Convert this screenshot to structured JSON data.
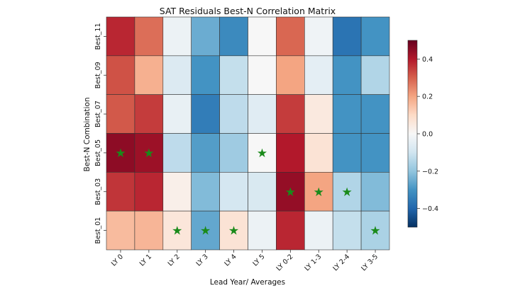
{
  "chart_data": {
    "type": "heatmap",
    "title": "SAT Residuals Best-N Correlation Matrix",
    "xlabel": "Lead Year/ Averages",
    "ylabel": "Best-N Combination",
    "x_categories": [
      "LY 0",
      "LY 1",
      "LY 2",
      "LY 3",
      "LY 4",
      "LY 5",
      "LY 0-2",
      "LY 1-3",
      "LY 2-4",
      "LY 3-5"
    ],
    "y_categories": [
      "Best_11",
      "Best_09",
      "Best_07",
      "Best_05",
      "Best_03",
      "Best_01"
    ],
    "values": [
      [
        0.38,
        0.28,
        -0.03,
        -0.25,
        -0.32,
        0.0,
        0.29,
        -0.02,
        -0.37,
        -0.3
      ],
      [
        0.32,
        0.18,
        -0.07,
        -0.3,
        -0.12,
        0.0,
        0.2,
        -0.05,
        -0.3,
        -0.15
      ],
      [
        0.31,
        0.35,
        -0.04,
        -0.35,
        -0.13,
        -0.06,
        0.35,
        0.05,
        -0.3,
        -0.3
      ],
      [
        0.45,
        0.43,
        -0.13,
        -0.28,
        -0.18,
        0.0,
        0.4,
        0.07,
        -0.3,
        -0.3
      ],
      [
        0.36,
        0.38,
        0.03,
        -0.22,
        -0.09,
        -0.08,
        0.44,
        0.2,
        -0.15,
        -0.22
      ],
      [
        0.16,
        0.17,
        0.06,
        -0.26,
        0.07,
        -0.03,
        0.38,
        -0.03,
        -0.12,
        -0.16
      ]
    ],
    "significant_markers": [
      [
        3,
        0
      ],
      [
        3,
        1
      ],
      [
        3,
        5
      ],
      [
        4,
        6
      ],
      [
        4,
        7
      ],
      [
        4,
        8
      ],
      [
        5,
        2
      ],
      [
        5,
        3
      ],
      [
        5,
        4
      ],
      [
        5,
        9
      ]
    ],
    "marker_symbol": "★",
    "marker_color": "#1a8a1a",
    "colormap": "RdBu_r",
    "vmin": -0.5,
    "vmax": 0.5,
    "colorbar_ticks": [
      0.4,
      0.2,
      0.0,
      -0.2,
      -0.4
    ],
    "colorbar_tick_labels": [
      "0.4",
      "0.2",
      "0.0",
      "−0.2",
      "−0.4"
    ],
    "grid": true
  }
}
